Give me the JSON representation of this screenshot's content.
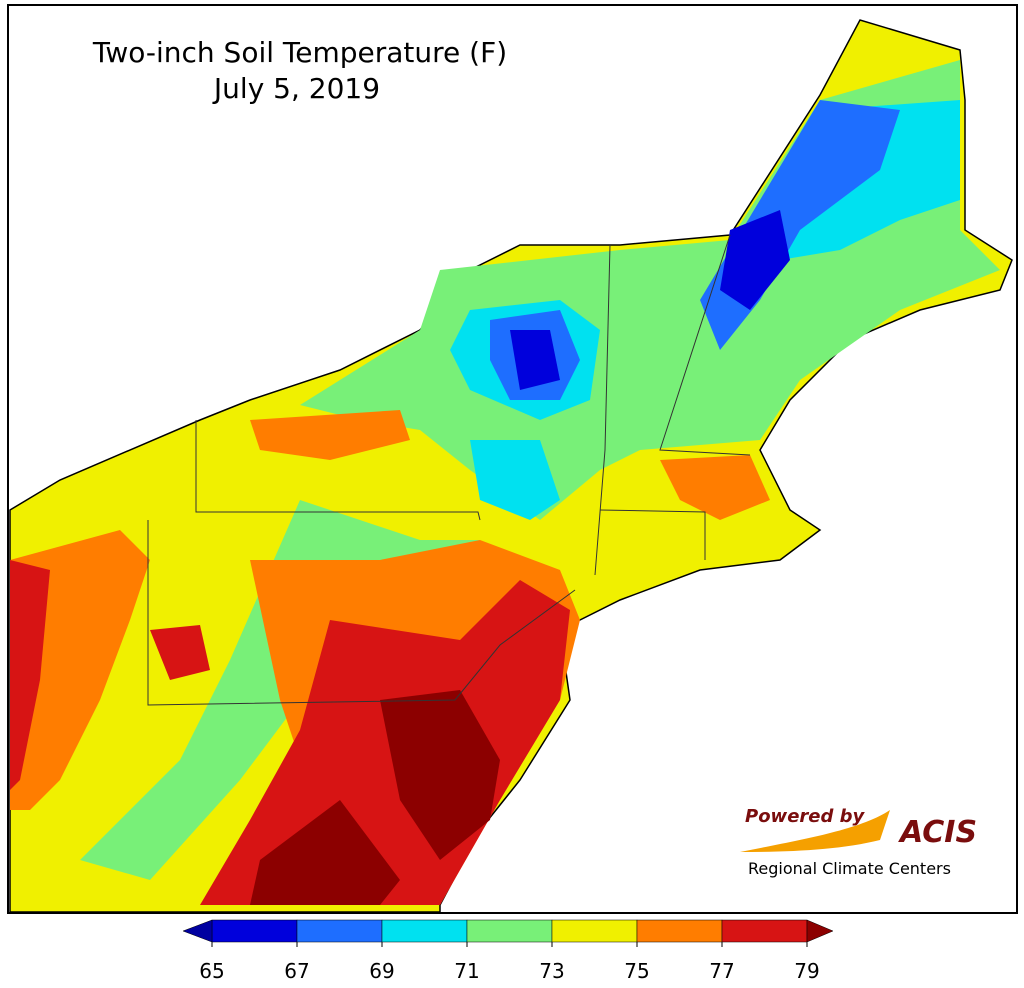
{
  "title": "Two-inch Soil Temperature (F)",
  "date": "July 5, 2019",
  "colorbar": {
    "ticks": [
      65,
      67,
      69,
      71,
      73,
      75,
      77,
      79
    ],
    "colors": [
      "#0000dc",
      "#1e6eff",
      "#00e1f0",
      "#78f078",
      "#f0f000",
      "#ff7d00",
      "#d71414"
    ],
    "under_color": "#0000a0",
    "over_color": "#8c0000"
  },
  "logo": {
    "powered": "Powered by",
    "name": "ACIS",
    "subtitle": "Regional Climate Centers"
  }
}
